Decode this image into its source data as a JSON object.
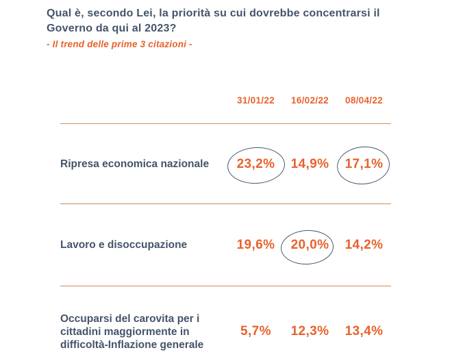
{
  "header": {
    "title": "Qual è, secondo Lei, la priorità su cui dovrebbe concentrarsi il Governo da qui al 2023?",
    "subtitle": "- Il trend delle prime 3 citazioni -"
  },
  "colors": {
    "title_navy": "#44546A",
    "accent_orange": "#E8622C",
    "divider_line": "#D28A5F",
    "ellipse_stroke": "#47566D"
  },
  "chart_data": {
    "type": "table",
    "title": "Qual è, secondo Lei, la priorità su cui dovrebbe concentrarsi il Governo da qui al 2023?",
    "subtitle": "- Il trend delle prime 3 citazioni -",
    "columns": [
      "31/01/22",
      "16/02/22",
      "08/04/22"
    ],
    "rows": [
      {
        "label": "Ripresa economica nazionale",
        "values": [
          "23,2%",
          "14,9%",
          "17,1%"
        ],
        "values_numeric": [
          23.2,
          14.9,
          17.1
        ],
        "circled": [
          true,
          false,
          true
        ]
      },
      {
        "label": "Lavoro e disoccupazione",
        "values": [
          "19,6%",
          "20,0%",
          "14,2%"
        ],
        "values_numeric": [
          19.6,
          20.0,
          14.2
        ],
        "circled": [
          false,
          true,
          false
        ]
      },
      {
        "label": "Occuparsi del carovita per i cittadini maggiormente in difficoltà-Inflazione generale",
        "values": [
          "5,7%",
          "12,3%",
          "13,4%"
        ],
        "values_numeric": [
          5.7,
          12.3,
          13.4
        ],
        "circled": [
          false,
          false,
          false
        ]
      }
    ],
    "layout_hints": {
      "value_unit": "%",
      "grid": "horizontal rules between rows",
      "highlight": "hand-drawn ellipses around peak values"
    }
  }
}
